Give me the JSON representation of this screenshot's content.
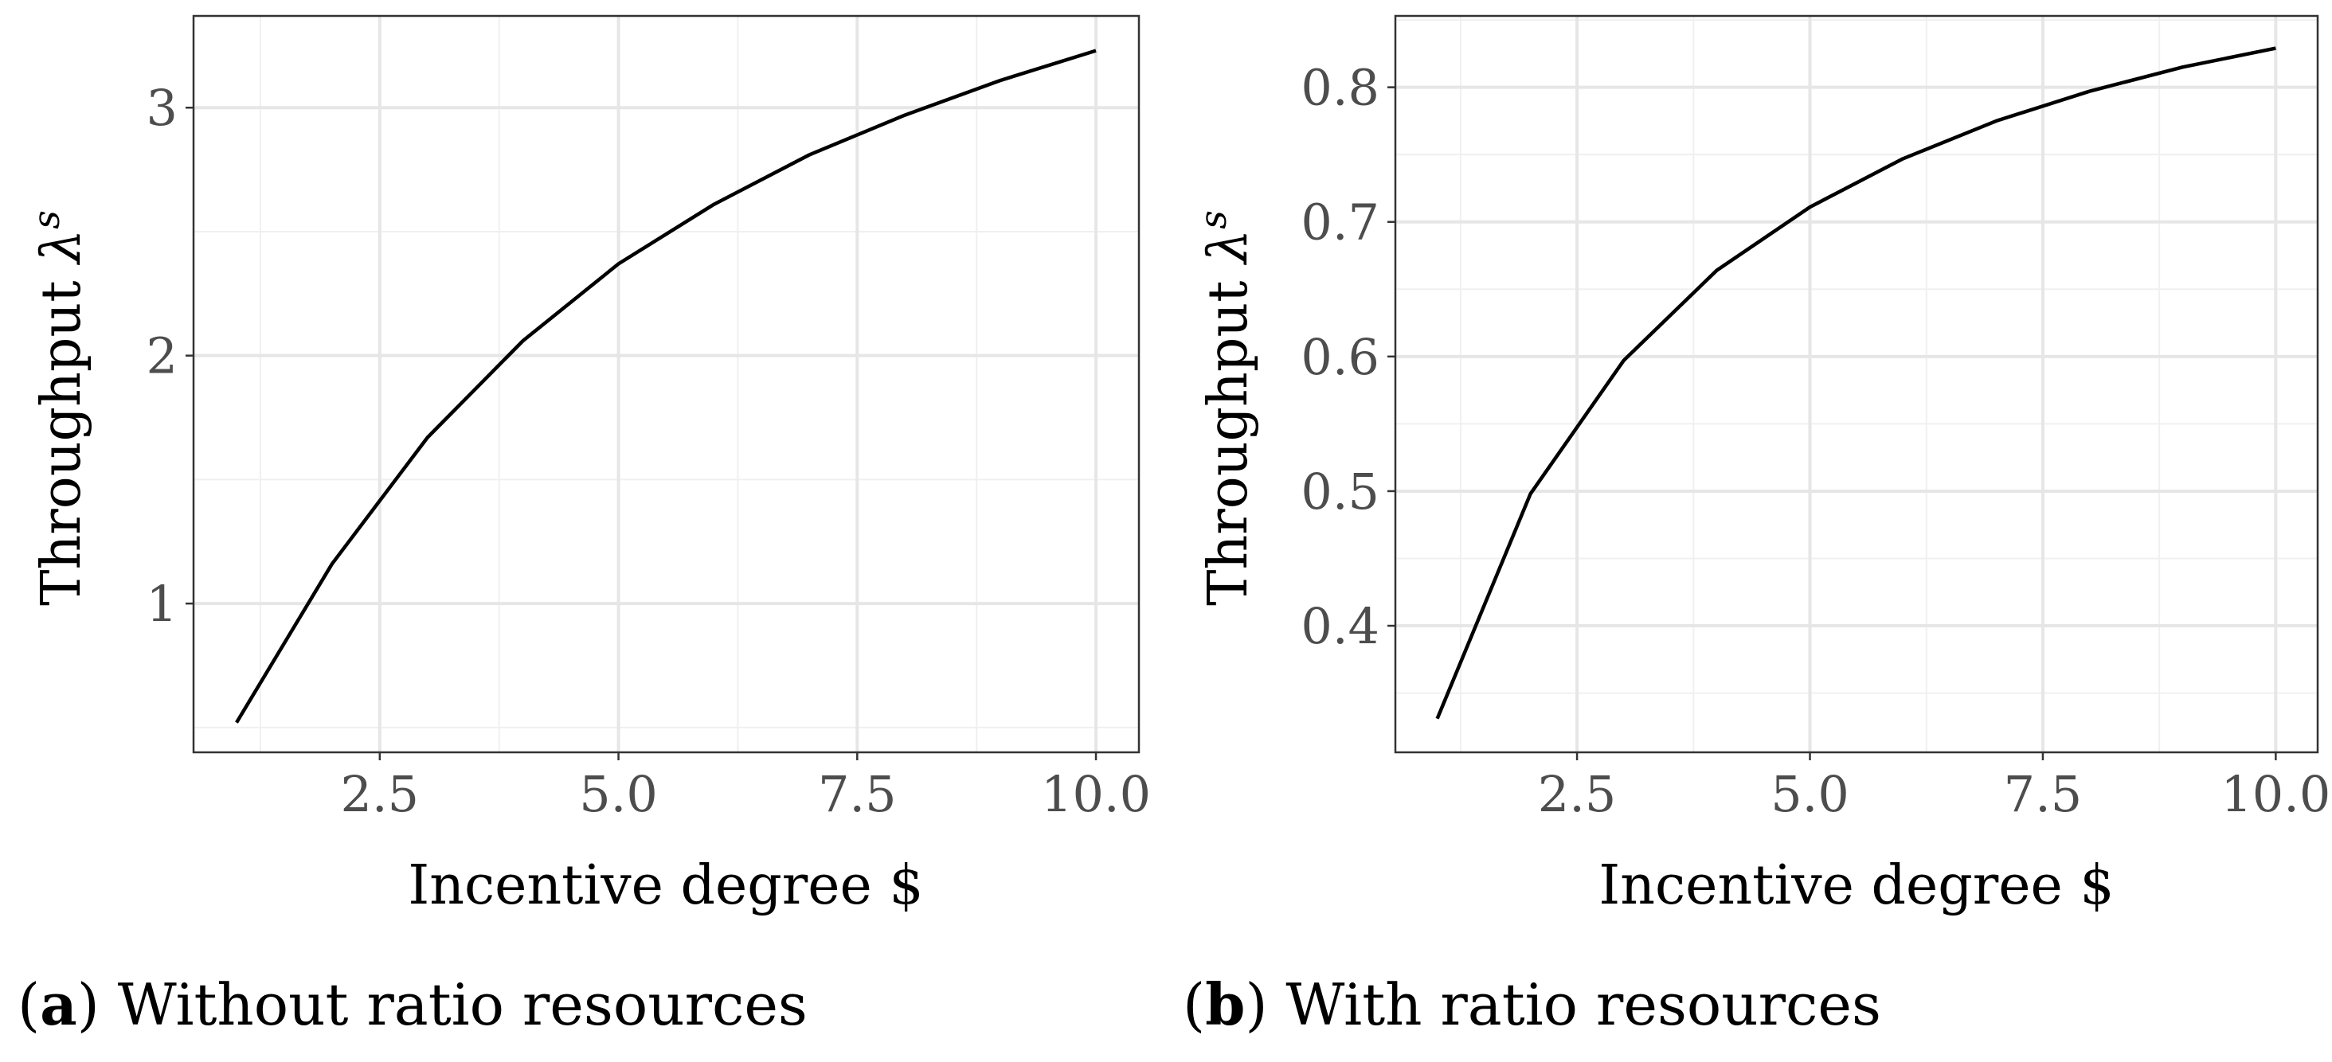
{
  "chart_data": [
    {
      "type": "line",
      "panel": "a",
      "caption_letter": "a",
      "caption_text": "Without ratio resources",
      "xlabel": "Incentive degree $",
      "ylabel_prefix": "Throughput ",
      "ylabel_symbol": "λ",
      "ylabel_superscript": "s",
      "xlim": [
        0.55,
        10.45
      ],
      "ylim": [
        0.4,
        3.37
      ],
      "xticks": [
        2.5,
        5.0,
        7.5,
        10.0
      ],
      "xtick_labels": [
        "2.5",
        "5.0",
        "7.5",
        "10.0"
      ],
      "yticks": [
        1,
        2,
        3
      ],
      "ytick_labels": [
        "1",
        "2",
        "3"
      ],
      "grid": true,
      "series": [
        {
          "name": "throughput",
          "x": [
            1,
            2,
            3,
            4,
            5,
            6,
            7,
            8,
            9,
            10
          ],
          "y": [
            0.52,
            1.16,
            1.67,
            2.06,
            2.37,
            2.61,
            2.81,
            2.97,
            3.11,
            3.23
          ]
        }
      ]
    },
    {
      "type": "line",
      "panel": "b",
      "caption_letter": "b",
      "caption_text": "With ratio resources",
      "xlabel": "Incentive degree $",
      "ylabel_prefix": "Throughput ",
      "ylabel_symbol": "λ",
      "ylabel_superscript": "s",
      "xlim": [
        0.55,
        10.45
      ],
      "ylim": [
        0.306,
        0.853
      ],
      "xticks": [
        2.5,
        5.0,
        7.5,
        10.0
      ],
      "xtick_labels": [
        "2.5",
        "5.0",
        "7.5",
        "10.0"
      ],
      "yticks": [
        0.4,
        0.5,
        0.6,
        0.7,
        0.8
      ],
      "ytick_labels": [
        "0.4",
        "0.5",
        "0.6",
        "0.7",
        "0.8"
      ],
      "grid": true,
      "series": [
        {
          "name": "throughput",
          "x": [
            1,
            2,
            3,
            4,
            5,
            6,
            7,
            8,
            9,
            10
          ],
          "y": [
            0.331,
            0.498,
            0.597,
            0.664,
            0.711,
            0.747,
            0.775,
            0.797,
            0.815,
            0.829
          ]
        }
      ]
    }
  ]
}
